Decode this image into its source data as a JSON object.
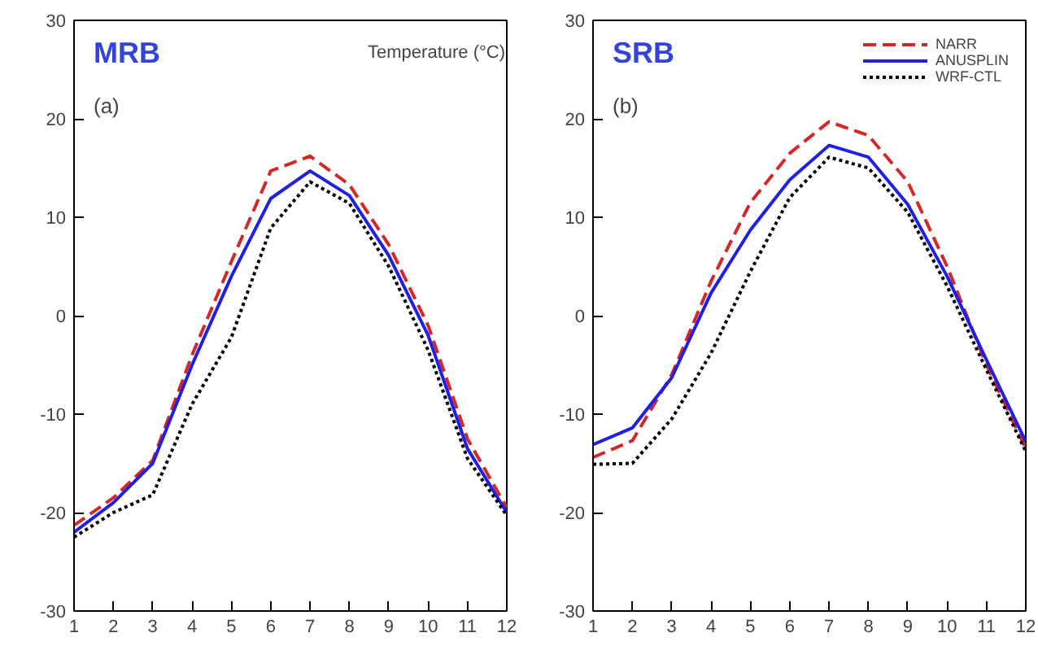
{
  "chart_data": [
    {
      "type": "line",
      "title": "MRB",
      "annotations": [
        "(a)",
        "Temperature (°C)"
      ],
      "x": [
        1,
        2,
        3,
        4,
        5,
        6,
        7,
        8,
        9,
        10,
        11,
        12
      ],
      "xlim": [
        1,
        12
      ],
      "xticks": [
        1,
        2,
        3,
        4,
        5,
        6,
        7,
        8,
        9,
        10,
        11,
        12
      ],
      "ylim": [
        -30,
        30
      ],
      "yticks": [
        -30,
        -20,
        -10,
        0,
        10,
        20,
        30
      ],
      "grid": false,
      "legend": false,
      "marker": "none",
      "series": [
        {
          "color": "#d62728",
          "line_style": "dashed",
          "values": [
            -21.3,
            -18.5,
            -14.7,
            -4,
            5.5,
            14.7,
            16.2,
            13.3,
            7.2,
            -1,
            -12.5,
            -19.5
          ]
        },
        {
          "color": "#1f1fe6",
          "line_style": "solid",
          "values": [
            -22,
            -19,
            -15,
            -5,
            4,
            11.9,
            14.7,
            12.2,
            6.1,
            -2,
            -13.5,
            -20
          ]
        },
        {
          "color": "#000000",
          "line_style": "dotted",
          "values": [
            -22.5,
            -20,
            -18.2,
            -9,
            -2.2,
            8.9,
            13.6,
            11.4,
            5,
            -3.5,
            -14.5,
            -20.3
          ]
        }
      ]
    },
    {
      "type": "line",
      "title": "SRB",
      "annotations": [
        "(b)"
      ],
      "x": [
        1,
        2,
        3,
        4,
        5,
        6,
        7,
        8,
        9,
        10,
        11,
        12
      ],
      "xlim": [
        1,
        12
      ],
      "xticks": [
        1,
        2,
        3,
        4,
        5,
        6,
        7,
        8,
        9,
        10,
        11,
        12
      ],
      "ylim": [
        -30,
        30
      ],
      "yticks": [
        -30,
        -20,
        -10,
        0,
        10,
        20,
        30
      ],
      "grid": false,
      "legend": "top right",
      "marker": "none",
      "series": [
        {
          "name": "NARR",
          "color": "#d62728",
          "line_style": "dashed",
          "values": [
            -14.4,
            -12.7,
            -6,
            3.5,
            11.5,
            16.5,
            19.7,
            18.3,
            13.6,
            5,
            -5,
            -13.5
          ]
        },
        {
          "name": "ANUSPLIN",
          "color": "#1f1fe6",
          "line_style": "solid",
          "values": [
            -13.1,
            -11.4,
            -6.3,
            2.3,
            8.7,
            13.8,
            17.3,
            16.1,
            11.3,
            4,
            -4.5,
            -12.8
          ]
        },
        {
          "name": "WRF-CTL",
          "color": "#000000",
          "line_style": "dotted",
          "values": [
            -15.1,
            -15,
            -10.5,
            -3.8,
            4.5,
            12,
            16.1,
            15,
            10.5,
            3,
            -5.5,
            -13.8
          ]
        }
      ]
    }
  ]
}
